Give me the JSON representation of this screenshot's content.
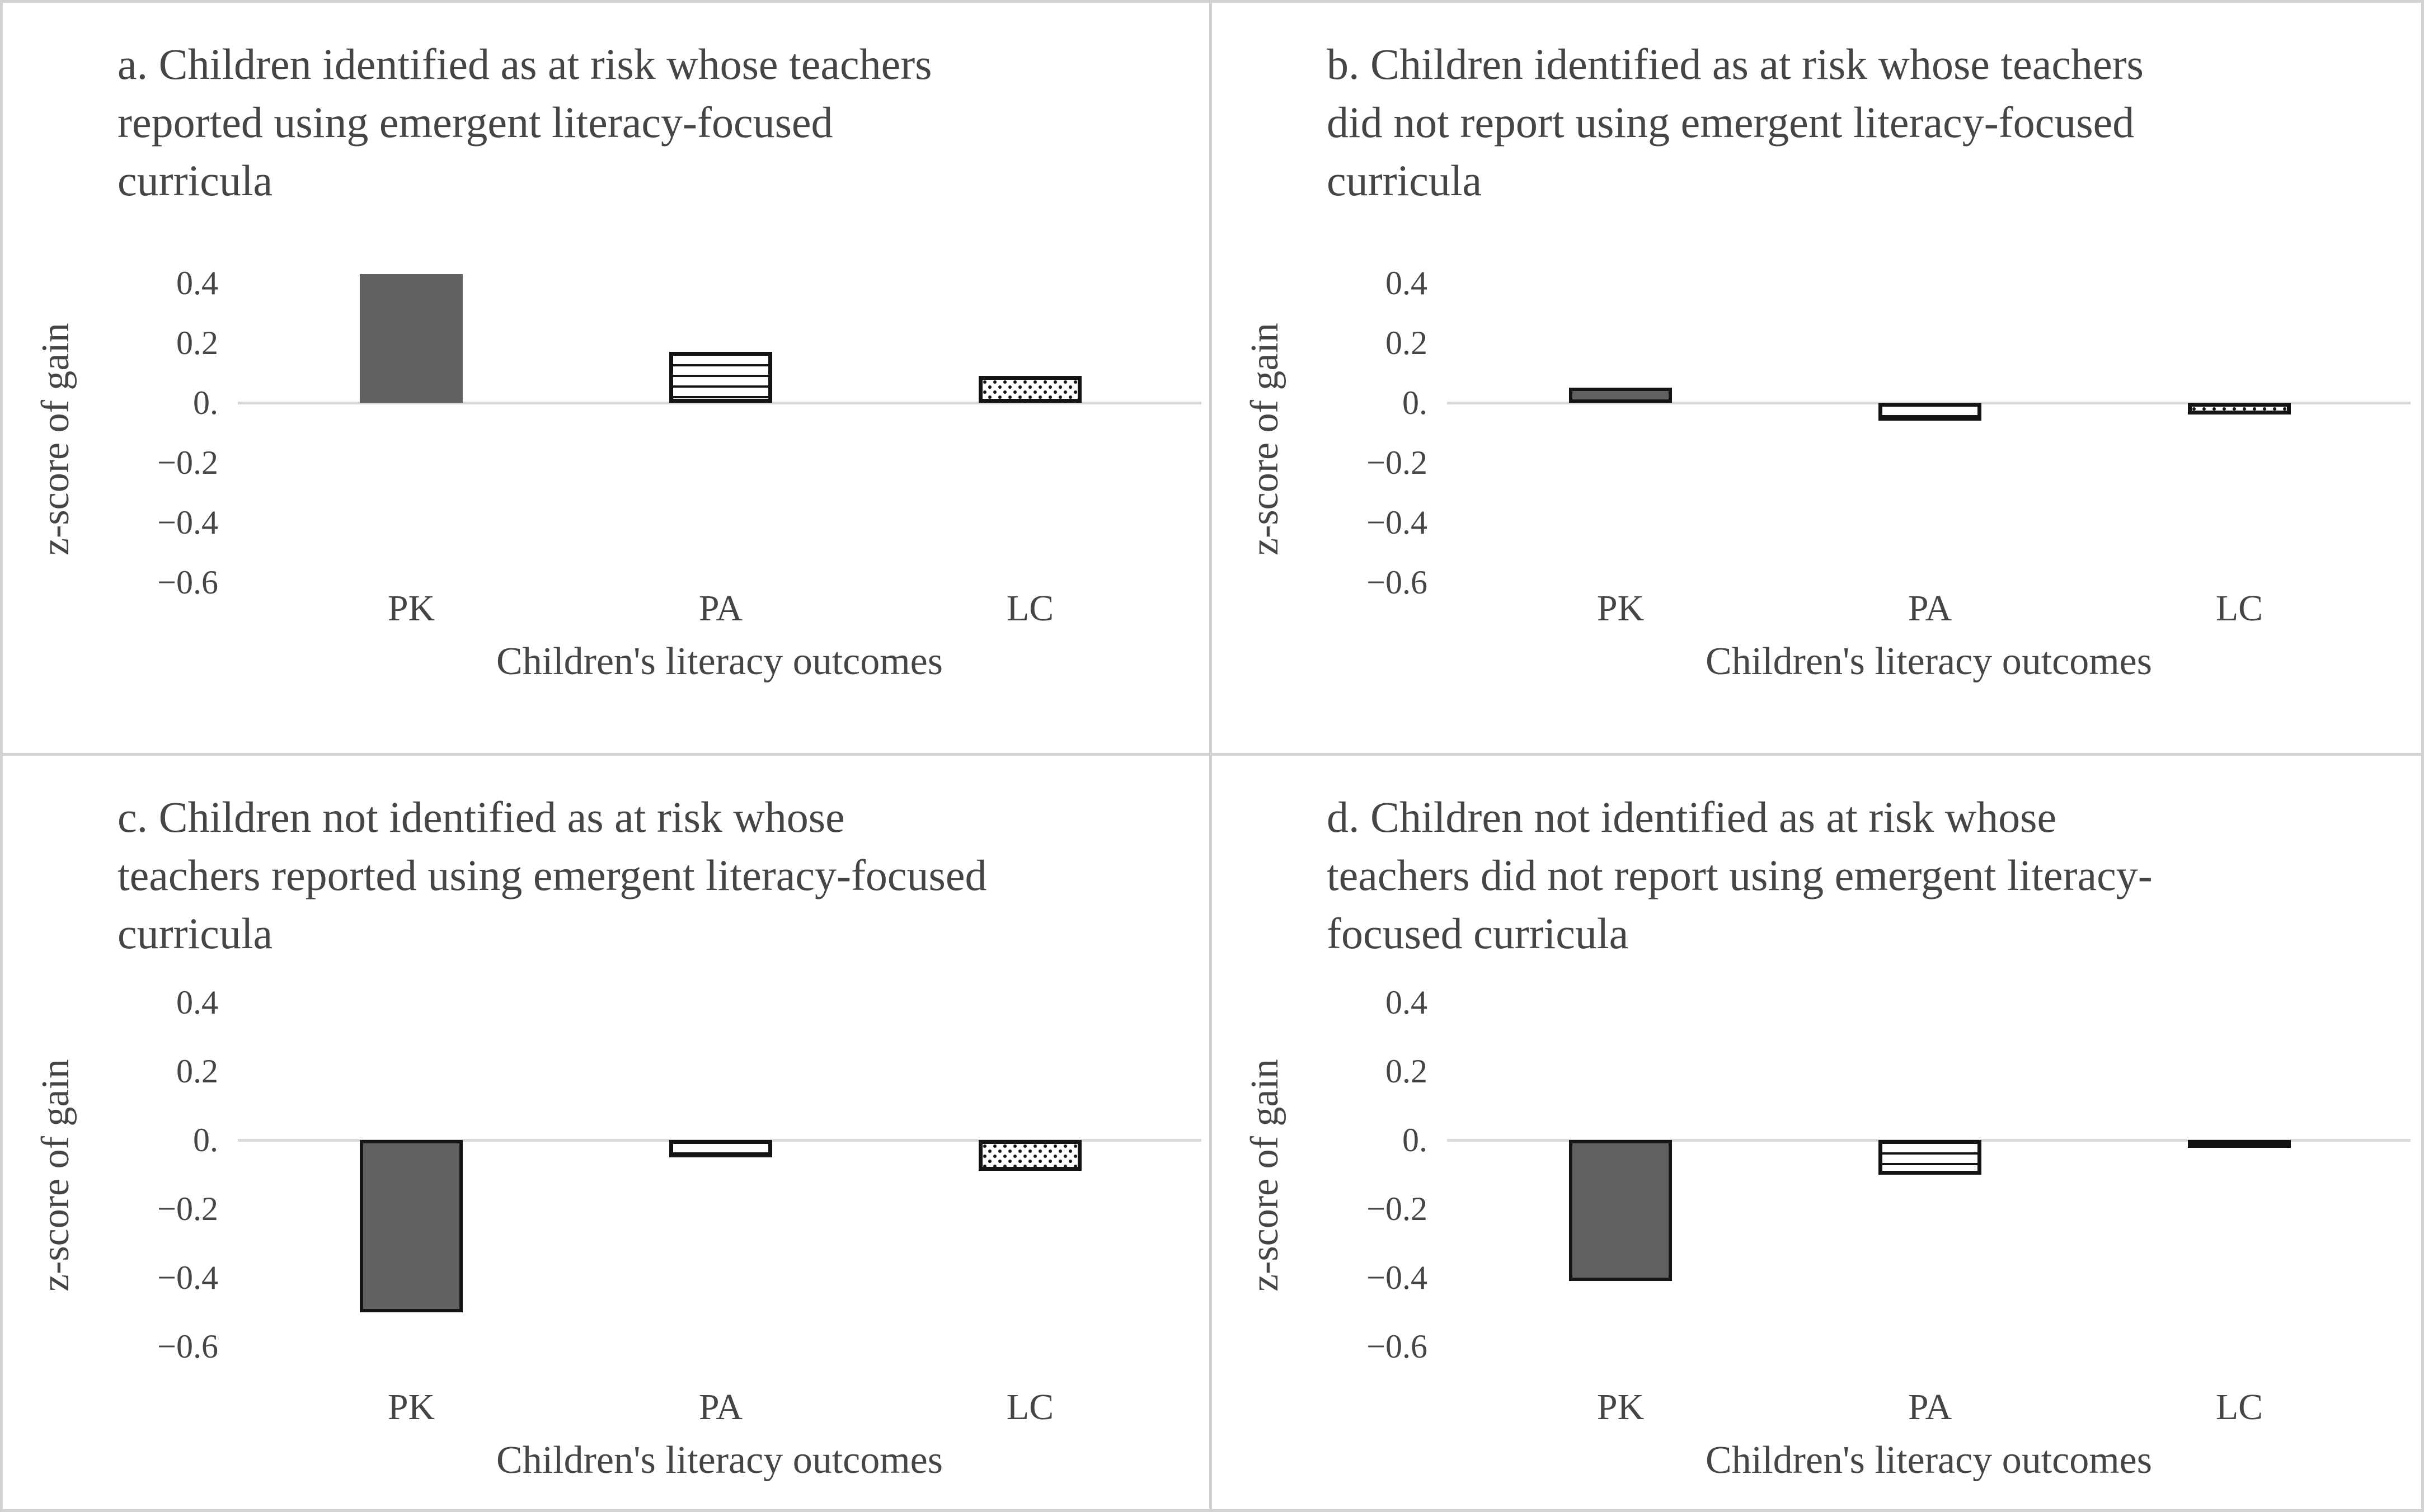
{
  "figure": {
    "kind": "four-panel bar chart figure",
    "ytick_labels": [
      "0.4",
      "0.2",
      "0.",
      "−0.2",
      "−0.4",
      "−0.6"
    ],
    "colors": {
      "solid_bar_fill": "#616161",
      "pattern_ink": "#141414",
      "zero_line": "#d9d9d9",
      "text": "#454545",
      "panel_divider": "#d2d2d2"
    }
  },
  "chart_data": [
    {
      "type": "bar",
      "panel": "a",
      "title": "a. Children identified as at risk whose teachers\nreported using emergent literacy-focused\ncurricula",
      "categories": [
        "PK",
        "PA",
        "LC"
      ],
      "values": [
        0.43,
        0.17,
        0.09
      ],
      "bar_styles": [
        "solid-gray",
        "horizontal-stripes",
        "dots"
      ],
      "xlabel": "Children's literacy outcomes",
      "ylabel": "z-score of gain",
      "ylim": [
        -0.6,
        0.4
      ],
      "yticks": [
        0.4,
        0.2,
        0,
        -0.2,
        -0.4,
        -0.6
      ],
      "grid": false,
      "legend": "none"
    },
    {
      "type": "bar",
      "panel": "b",
      "title": "b. Children identified as at risk whose teachers\ndid not report using emergent literacy-focused\ncurricula",
      "categories": [
        "PK",
        "PA",
        "LC"
      ],
      "values": [
        0.05,
        -0.06,
        -0.04
      ],
      "bar_styles": [
        "solid-gray-outlined",
        "horizontal-stripes",
        "dots"
      ],
      "xlabel": "Children's literacy outcomes",
      "ylabel": "z-score of gain",
      "ylim": [
        -0.6,
        0.4
      ],
      "yticks": [
        0.4,
        0.2,
        0,
        -0.2,
        -0.4,
        -0.6
      ],
      "grid": false,
      "legend": "none"
    },
    {
      "type": "bar",
      "panel": "c",
      "title": "c. Children not identified as at risk whose\nteachers reported using emergent literacy-focused\ncurricula",
      "categories": [
        "PK",
        "PA",
        "LC"
      ],
      "values": [
        -0.5,
        -0.05,
        -0.09
      ],
      "bar_styles": [
        "solid-gray-outlined",
        "horizontal-stripes",
        "dots"
      ],
      "xlabel": "Children's literacy outcomes",
      "ylabel": "z-score of gain",
      "ylim": [
        -0.6,
        0.4
      ],
      "yticks": [
        0.4,
        0.2,
        0,
        -0.2,
        -0.4,
        -0.6
      ],
      "grid": false,
      "legend": "none"
    },
    {
      "type": "bar",
      "panel": "d",
      "title": "d. Children not identified as at risk whose\nteachers did not report using emergent literacy-\nfocused curricula",
      "categories": [
        "PK",
        "PA",
        "LC"
      ],
      "values": [
        -0.41,
        -0.1,
        -0.02
      ],
      "bar_styles": [
        "solid-gray-outlined",
        "horizontal-stripes",
        "dots"
      ],
      "xlabel": "Children's literacy outcomes",
      "ylabel": "z-score of gain",
      "ylim": [
        -0.6,
        0.4
      ],
      "yticks": [
        0.4,
        0.2,
        0,
        -0.2,
        -0.4,
        -0.6
      ],
      "grid": false,
      "legend": "none"
    }
  ]
}
